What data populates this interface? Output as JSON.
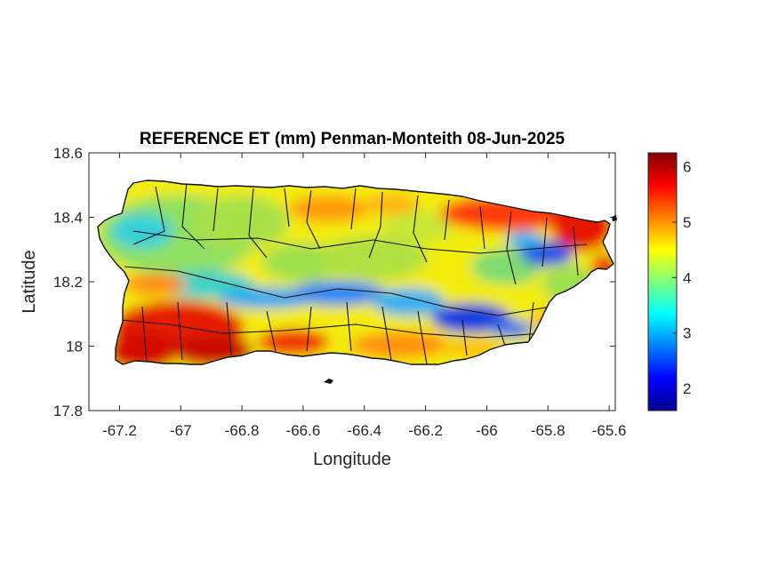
{
  "chart_data": {
    "type": "heatmap",
    "title": "REFERENCE ET (mm) Penman-Monteith 08-Jun-2025",
    "xlabel": "Longitude",
    "ylabel": "Latitude",
    "xlim": [
      -67.3,
      -65.58
    ],
    "ylim": [
      17.8,
      18.6
    ],
    "xticks": [
      "-67.2",
      "-67",
      "-66.8",
      "-66.6",
      "-66.4",
      "-66.2",
      "-66",
      "-65.8",
      "-65.6"
    ],
    "xtick_values": [
      -67.2,
      -67,
      -66.8,
      -66.6,
      -66.4,
      -66.2,
      -66,
      -65.8,
      -65.6
    ],
    "yticks": [
      "18.6",
      "18.4",
      "18.2",
      "18",
      "17.8"
    ],
    "ytick_values": [
      18.6,
      18.4,
      18.2,
      18.0,
      17.8
    ],
    "colorbar": {
      "colormap": "jet",
      "range": [
        1.6,
        6.25
      ],
      "ticks": [
        "6",
        "5",
        "4",
        "3",
        "2"
      ],
      "tick_values": [
        6,
        5,
        4,
        3,
        2
      ]
    },
    "grid": false
  }
}
